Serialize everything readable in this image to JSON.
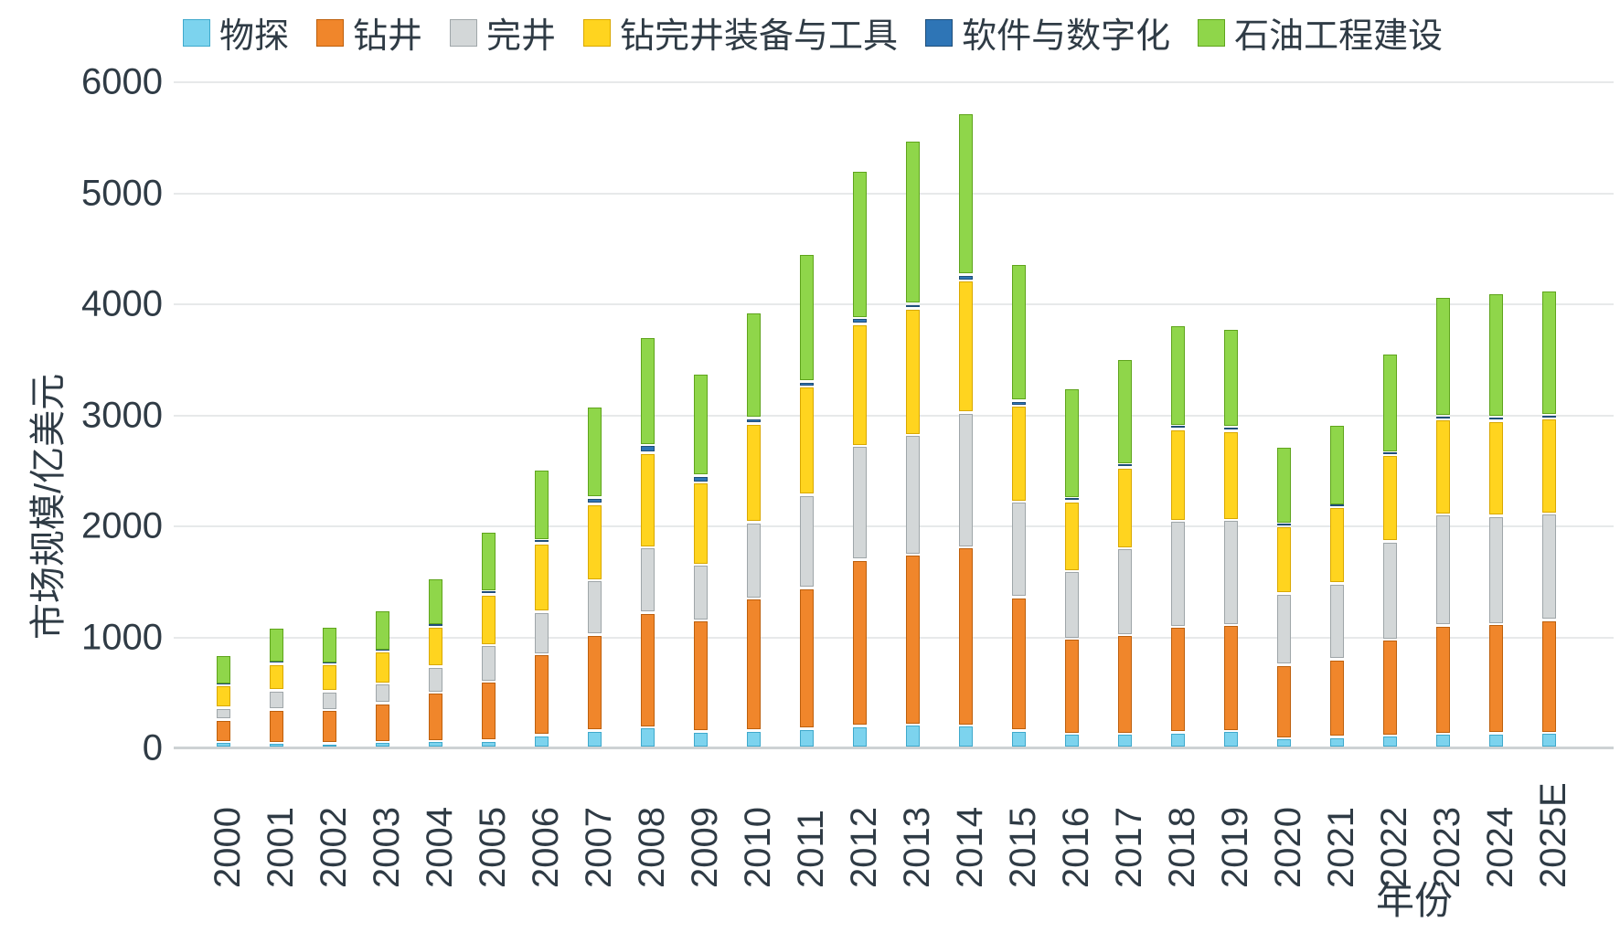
{
  "chart_data": {
    "type": "bar",
    "stacked": true,
    "title": "",
    "xlabel": "年份",
    "ylabel": "市场规模/亿美元",
    "ylim": [
      0,
      6000
    ],
    "yticks": [
      0,
      1000,
      2000,
      3000,
      4000,
      5000,
      6000
    ],
    "grid": "horizontal",
    "legend_position": "top",
    "unit": "亿美元",
    "categories": [
      "2000",
      "2001",
      "2002",
      "2003",
      "2004",
      "2005",
      "2006",
      "2007",
      "2008",
      "2009",
      "2010",
      "2011",
      "2012",
      "2013",
      "2014",
      "2015",
      "2016",
      "2017",
      "2018",
      "2019",
      "2020",
      "2021",
      "2022",
      "2023",
      "2024",
      "2025E"
    ],
    "series": [
      {
        "name": "物探",
        "color": "#7CD3EE",
        "border": "#3FA9CC",
        "values": [
          50,
          45,
          40,
          50,
          60,
          65,
          115,
          155,
          185,
          145,
          155,
          170,
          195,
          210,
          200,
          155,
          125,
          125,
          140,
          150,
          85,
          95,
          110,
          125,
          130,
          135
        ]
      },
      {
        "name": "钻井",
        "color": "#F0862B",
        "border": "#BD5F0C",
        "values": [
          205,
          300,
          300,
          350,
          435,
          530,
          725,
          865,
          1030,
          1000,
          1190,
          1270,
          1500,
          1530,
          1605,
          1200,
          855,
          890,
          950,
          955,
          660,
          700,
          865,
          975,
          985,
          1015
        ]
      },
      {
        "name": "完井",
        "color": "#D3D7D8",
        "border": "#9FA6A9",
        "values": [
          105,
          170,
          170,
          180,
          235,
          330,
          385,
          490,
          590,
          505,
          685,
          840,
          1025,
          1075,
          1215,
          860,
          610,
          780,
          955,
          945,
          645,
          685,
          885,
          1000,
          975,
          960
        ]
      },
      {
        "name": "钻完井装备与工具",
        "color": "#FFD41F",
        "border": "#D9A800",
        "values": [
          200,
          240,
          240,
          285,
          360,
          455,
          615,
          685,
          850,
          740,
          890,
          975,
          1095,
          1140,
          1190,
          865,
          630,
          730,
          825,
          805,
          605,
          685,
          775,
          855,
          855,
          855
        ]
      },
      {
        "name": "软件与数字化",
        "color": "#2E75B6",
        "border": "#1F4E79",
        "values": [
          10,
          10,
          10,
          10,
          10,
          30,
          30,
          60,
          70,
          60,
          50,
          45,
          55,
          45,
          50,
          45,
          25,
          25,
          30,
          35,
          20,
          20,
          20,
          30,
          35,
          30
        ]
      },
      {
        "name": "石油工程建设",
        "color": "#8FD64A",
        "border": "#5FA41C",
        "values": [
          265,
          315,
          330,
          360,
          425,
          540,
          640,
          820,
          975,
          920,
          950,
          1145,
          1330,
          1470,
          1460,
          1230,
          990,
          950,
          905,
          880,
          700,
          725,
          895,
          1075,
          1115,
          1125
        ]
      }
    ]
  }
}
